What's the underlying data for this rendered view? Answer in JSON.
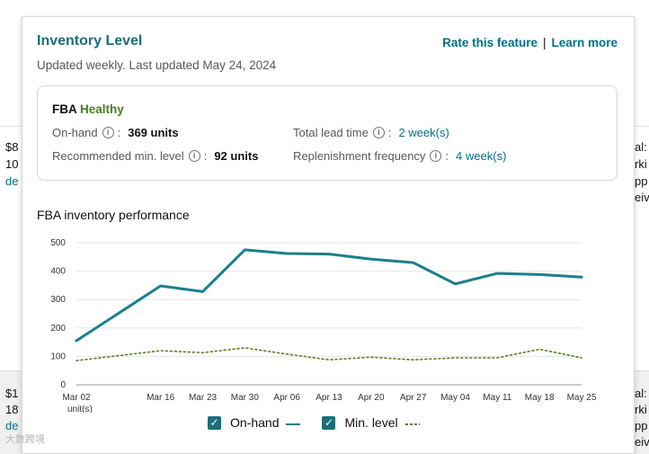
{
  "background": {
    "left_fragments": [
      "$8",
      "10",
      "de",
      "$1",
      "18",
      "de"
    ],
    "right_fragments": [
      "al:",
      "rki",
      "pp",
      "eiv",
      "al:",
      "rki",
      "pp",
      "eiv"
    ]
  },
  "header": {
    "title": "Inventory Level",
    "subtitle": "Updated weekly. Last updated May 24, 2024",
    "rate_link": "Rate this feature",
    "separator": "|",
    "learn_link": "Learn more"
  },
  "summary": {
    "label": "FBA",
    "status": "Healthy",
    "on_hand_label": "On-hand",
    "on_hand_value": "369 units",
    "min_level_label": "Recommended min. level",
    "min_level_value": "92 units",
    "lead_time_label": "Total lead time",
    "lead_time_value": "2 week(s)",
    "replenish_label": "Replenishment frequency",
    "replenish_value": "4 week(s)"
  },
  "chart_title": "FBA inventory performance",
  "colors": {
    "on_hand": "#1b7f8c",
    "min_level": "#5f7d2a",
    "accent": "#007185"
  },
  "chart_data": {
    "type": "line",
    "title": "FBA inventory performance",
    "xlabel": "",
    "ylabel": "units",
    "y_unit_label": "unit(s)",
    "ylim": [
      0,
      500
    ],
    "yticks": [
      0,
      100,
      200,
      300,
      400,
      500
    ],
    "x": [
      "Mar 02",
      "Mar 16",
      "Mar 23",
      "Mar 30",
      "Apr 06",
      "Apr 13",
      "Apr 20",
      "Apr 27",
      "May 04",
      "May 11",
      "May 18",
      "May 25"
    ],
    "x_days": [
      0,
      14,
      21,
      28,
      35,
      42,
      49,
      56,
      63,
      70,
      77,
      84
    ],
    "series": [
      {
        "name": "On-hand",
        "style": "solid",
        "values": [
          155,
          348,
          328,
          475,
          462,
          460,
          442,
          430,
          355,
          392,
          388,
          379
        ]
      },
      {
        "name": "Min. level",
        "style": "dotted",
        "values": [
          85,
          120,
          113,
          130,
          108,
          88,
          97,
          88,
          95,
          95,
          125,
          95
        ]
      }
    ],
    "legend": "bottom-center",
    "grid": true
  },
  "legend": {
    "on_hand_label": "On-hand",
    "min_level_label": "Min. level",
    "check_glyph": "✓"
  },
  "watermark": "大数跨境"
}
